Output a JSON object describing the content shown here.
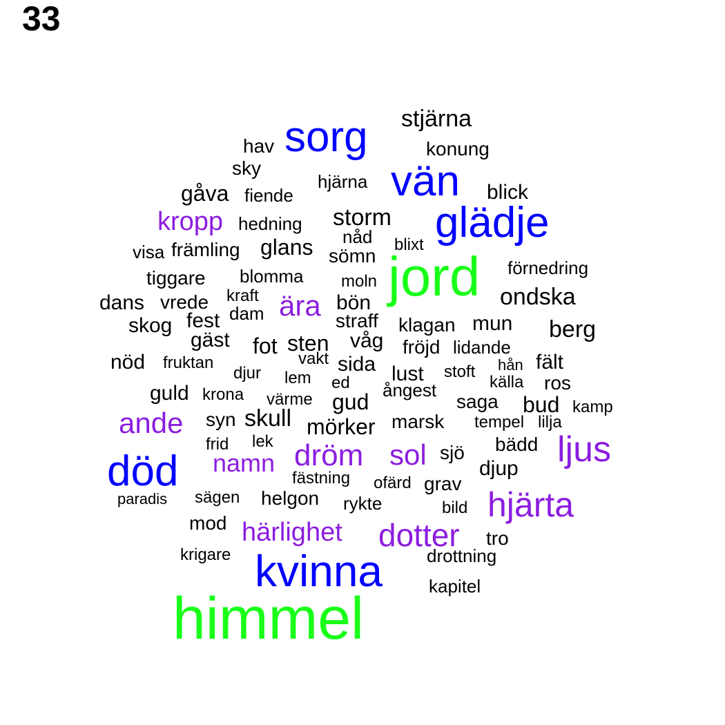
{
  "page_number": "33",
  "palette": {
    "black": "#000000",
    "blue": "#0000ff",
    "green": "#19ff19",
    "purple": "#8b1de0"
  },
  "words": [
    {
      "text": "stjärna",
      "color": "black",
      "size": 2
    },
    {
      "text": "sorg",
      "color": "blue",
      "size": 4
    },
    {
      "text": "hav",
      "color": "black",
      "size": 2
    },
    {
      "text": "konung",
      "color": "black",
      "size": 2
    },
    {
      "text": "sky",
      "color": "black",
      "size": 2
    },
    {
      "text": "vän",
      "color": "blue",
      "size": 4
    },
    {
      "text": "hjärna",
      "color": "black",
      "size": 1
    },
    {
      "text": "gåva",
      "color": "black",
      "size": 2
    },
    {
      "text": "fiende",
      "color": "black",
      "size": 1
    },
    {
      "text": "blick",
      "color": "black",
      "size": 2
    },
    {
      "text": "kropp",
      "color": "purple",
      "size": 3
    },
    {
      "text": "hedning",
      "color": "black",
      "size": 1
    },
    {
      "text": "storm",
      "color": "black",
      "size": 2
    },
    {
      "text": "glädje",
      "color": "blue",
      "size": 4
    },
    {
      "text": "nåd",
      "color": "black",
      "size": 1
    },
    {
      "text": "visa",
      "color": "black",
      "size": 1
    },
    {
      "text": "främling",
      "color": "black",
      "size": 2
    },
    {
      "text": "glans",
      "color": "black",
      "size": 2
    },
    {
      "text": "blixt",
      "color": "black",
      "size": 1
    },
    {
      "text": "sömn",
      "color": "black",
      "size": 2
    },
    {
      "text": "jord",
      "color": "green",
      "size": 5
    },
    {
      "text": "förnedring",
      "color": "black",
      "size": 1
    },
    {
      "text": "tiggare",
      "color": "black",
      "size": 2
    },
    {
      "text": "blomma",
      "color": "black",
      "size": 1
    },
    {
      "text": "moln",
      "color": "black",
      "size": 1
    },
    {
      "text": "ondska",
      "color": "black",
      "size": 2
    },
    {
      "text": "dans",
      "color": "black",
      "size": 2
    },
    {
      "text": "vrede",
      "color": "black",
      "size": 2
    },
    {
      "text": "kraft",
      "color": "black",
      "size": 1
    },
    {
      "text": "ära",
      "color": "purple",
      "size": 3
    },
    {
      "text": "bön",
      "color": "black",
      "size": 2
    },
    {
      "text": "dam",
      "color": "black",
      "size": 1
    },
    {
      "text": "skog",
      "color": "black",
      "size": 2
    },
    {
      "text": "fest",
      "color": "black",
      "size": 2
    },
    {
      "text": "straff",
      "color": "black",
      "size": 2
    },
    {
      "text": "klagan",
      "color": "black",
      "size": 2
    },
    {
      "text": "mun",
      "color": "black",
      "size": 2
    },
    {
      "text": "berg",
      "color": "black",
      "size": 2
    },
    {
      "text": "gäst",
      "color": "black",
      "size": 2
    },
    {
      "text": "fot",
      "color": "black",
      "size": 2
    },
    {
      "text": "sten",
      "color": "black",
      "size": 2
    },
    {
      "text": "våg",
      "color": "black",
      "size": 2
    },
    {
      "text": "fröjd",
      "color": "black",
      "size": 2
    },
    {
      "text": "lidande",
      "color": "black",
      "size": 2
    },
    {
      "text": "nöd",
      "color": "black",
      "size": 2
    },
    {
      "text": "fruktan",
      "color": "black",
      "size": 1
    },
    {
      "text": "vakt",
      "color": "black",
      "size": 1
    },
    {
      "text": "sida",
      "color": "black",
      "size": 2
    },
    {
      "text": "hån",
      "color": "black",
      "size": 1
    },
    {
      "text": "fält",
      "color": "black",
      "size": 2
    },
    {
      "text": "djur",
      "color": "black",
      "size": 1
    },
    {
      "text": "lem",
      "color": "black",
      "size": 1
    },
    {
      "text": "lust",
      "color": "black",
      "size": 2
    },
    {
      "text": "stoft",
      "color": "black",
      "size": 1
    },
    {
      "text": "ed",
      "color": "black",
      "size": 1
    },
    {
      "text": "källa",
      "color": "black",
      "size": 1
    },
    {
      "text": "ros",
      "color": "black",
      "size": 2
    },
    {
      "text": "ångest",
      "color": "black",
      "size": 1
    },
    {
      "text": "guld",
      "color": "black",
      "size": 2
    },
    {
      "text": "krona",
      "color": "black",
      "size": 1
    },
    {
      "text": "värme",
      "color": "black",
      "size": 1
    },
    {
      "text": "gud",
      "color": "black",
      "size": 2
    },
    {
      "text": "saga",
      "color": "black",
      "size": 2
    },
    {
      "text": "bud",
      "color": "black",
      "size": 2
    },
    {
      "text": "kamp",
      "color": "black",
      "size": 1
    },
    {
      "text": "ande",
      "color": "purple",
      "size": 3
    },
    {
      "text": "syn",
      "color": "black",
      "size": 2
    },
    {
      "text": "skull",
      "color": "black",
      "size": 2
    },
    {
      "text": "marsk",
      "color": "black",
      "size": 2
    },
    {
      "text": "tempel",
      "color": "black",
      "size": 1
    },
    {
      "text": "lilja",
      "color": "black",
      "size": 1
    },
    {
      "text": "mörker",
      "color": "black",
      "size": 2
    },
    {
      "text": "frid",
      "color": "black",
      "size": 1
    },
    {
      "text": "lek",
      "color": "black",
      "size": 1
    },
    {
      "text": "ljus",
      "color": "purple",
      "size": 3
    },
    {
      "text": "bädd",
      "color": "black",
      "size": 2
    },
    {
      "text": "dröm",
      "color": "purple",
      "size": 3
    },
    {
      "text": "sol",
      "color": "purple",
      "size": 3
    },
    {
      "text": "sjö",
      "color": "black",
      "size": 2
    },
    {
      "text": "död",
      "color": "blue",
      "size": 4
    },
    {
      "text": "namn",
      "color": "purple",
      "size": 3
    },
    {
      "text": "djup",
      "color": "black",
      "size": 2
    },
    {
      "text": "fästning",
      "color": "black",
      "size": 1
    },
    {
      "text": "ofärd",
      "color": "black",
      "size": 1
    },
    {
      "text": "grav",
      "color": "black",
      "size": 2
    },
    {
      "text": "paradis",
      "color": "black",
      "size": 1
    },
    {
      "text": "sägen",
      "color": "black",
      "size": 1
    },
    {
      "text": "helgon",
      "color": "black",
      "size": 2
    },
    {
      "text": "hjärta",
      "color": "purple",
      "size": 3
    },
    {
      "text": "rykte",
      "color": "black",
      "size": 2
    },
    {
      "text": "bild",
      "color": "black",
      "size": 1
    },
    {
      "text": "mod",
      "color": "black",
      "size": 2
    },
    {
      "text": "härlighet",
      "color": "purple",
      "size": 3
    },
    {
      "text": "dotter",
      "color": "purple",
      "size": 3
    },
    {
      "text": "tro",
      "color": "black",
      "size": 2
    },
    {
      "text": "krigare",
      "color": "black",
      "size": 1
    },
    {
      "text": "drottning",
      "color": "black",
      "size": 1
    },
    {
      "text": "kvinna",
      "color": "blue",
      "size": 4
    },
    {
      "text": "kapitel",
      "color": "black",
      "size": 2
    },
    {
      "text": "himmel",
      "color": "green",
      "size": 5
    }
  ]
}
